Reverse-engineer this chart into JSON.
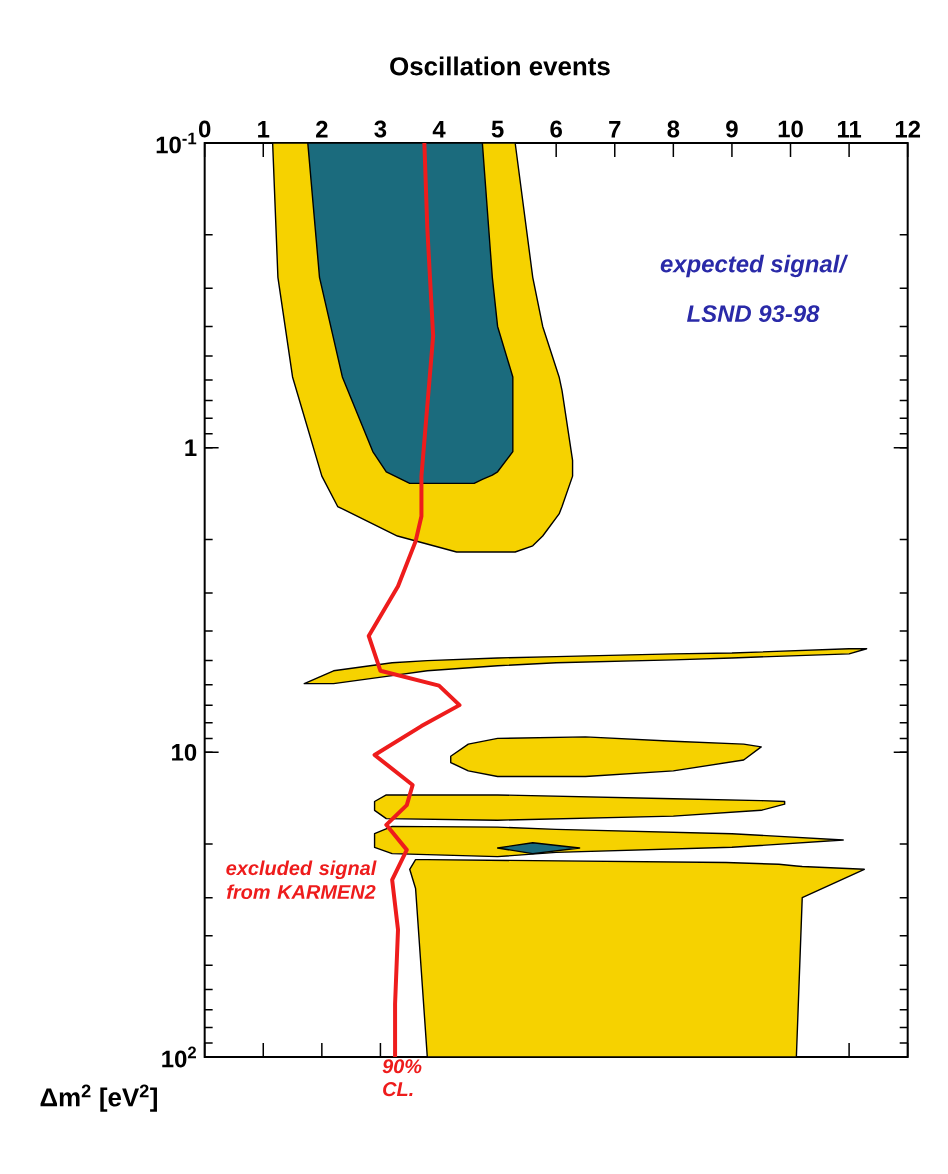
{
  "chart_data": {
    "type": "line",
    "log": "y",
    "xlabel": "Oscillation events",
    "ylabel": "Δm$^{2}$ [eV$^{2}$]",
    "xlim": [
      0,
      12
    ],
    "ylim": [
      100,
      0.1
    ],
    "xticks": [
      0,
      1,
      2,
      3,
      4,
      5,
      6,
      7,
      8,
      9,
      10,
      11,
      12
    ],
    "yticks": [
      {
        "value": 0.1,
        "label": "10$^{-1}$"
      },
      1,
      10,
      {
        "value": 100,
        "label": "10$^{2}$"
      }
    ],
    "series": [
      {
        "type": "area",
        "color": "#f6d200",
        "x": [
          1.16,
          1.25,
          1.5,
          2.0,
          2.27,
          3.29,
          4.3,
          5.3,
          5.6,
          5.77,
          6.05,
          6.1,
          6.28
        ],
        "values": [
          null,
          null,
          null,
          null,
          null,
          null,
          null,
          null,
          null,
          null,
          null,
          null,
          null
        ],
        "lower": [
          0.1,
          0.1,
          0.1,
          0.1,
          0.1,
          0.1,
          0.1,
          0.1,
          0.276,
          0.4,
          0.586,
          0.65,
          1.1
        ],
        "upper": [
          0.1,
          0.276,
          0.586,
          1.24,
          1.56,
          1.95,
          2.2,
          2.2,
          2.1,
          1.95,
          1.65,
          1.56,
          1.24
        ]
      },
      {
        "type": "area",
        "color": "#1b6b7d",
        "x": [
          1.76,
          1.96,
          2.35,
          2.87,
          3.1,
          3.5,
          4.6,
          4.74,
          4.91,
          5.0,
          5.26
        ],
        "values": [
          null,
          null,
          null,
          null,
          null,
          null,
          null,
          null,
          null,
          null,
          null
        ],
        "lower": [
          0.1,
          0.1,
          0.1,
          0.1,
          0.1,
          0.1,
          0.1,
          0.1,
          0.276,
          0.4,
          0.586
        ],
        "upper": [
          0.1,
          0.276,
          0.586,
          1.03,
          1.2,
          1.31,
          1.31,
          1.27,
          1.23,
          1.2,
          1.03
        ]
      },
      {
        "type": "area",
        "color": "#f6d200",
        "x": [
          1.7,
          2.2,
          3.2,
          3.8,
          5.0,
          6.0,
          8.0,
          9.0,
          11.0,
          11.3
        ],
        "values": [
          null,
          null,
          null,
          null,
          null,
          null,
          null,
          null,
          null,
          null
        ],
        "lower": [
          5.95,
          5.4,
          5.08,
          5.0,
          4.9,
          4.85,
          4.75,
          4.72,
          4.57,
          4.57
        ],
        "upper": [
          5.95,
          5.95,
          5.6,
          5.4,
          5.2,
          5.08,
          4.97,
          4.9,
          4.75,
          4.57
        ]
      },
      {
        "type": "area",
        "color": "#f6d200",
        "x": [
          4.2,
          4.5,
          5.0,
          6.5,
          8.0,
          9.2,
          9.5
        ],
        "values": [
          null,
          null,
          null,
          null,
          null,
          null,
          null
        ],
        "lower": [
          10.3,
          9.4,
          9.0,
          8.9,
          9.2,
          9.4,
          9.6
        ],
        "upper": [
          10.8,
          11.5,
          12.0,
          12.0,
          11.5,
          10.6,
          9.6
        ]
      },
      {
        "type": "area",
        "color": "#f6d200",
        "x": [
          2.9,
          3.1,
          5.0,
          8.0,
          9.5,
          9.9
        ],
        "values": [
          null,
          null,
          null,
          null,
          null,
          null
        ],
        "lower": [
          14.5,
          13.8,
          13.8,
          14.2,
          14.4,
          14.5
        ],
        "upper": [
          15.5,
          16.5,
          16.7,
          16.2,
          15.5,
          14.8
        ]
      },
      {
        "type": "area",
        "color": "#f6d200",
        "x": [
          2.9,
          3.2,
          5.0,
          6.0,
          9.0,
          10.9
        ],
        "values": [
          null,
          null,
          null,
          null,
          null,
          null
        ],
        "lower": [
          18.5,
          17.5,
          17.6,
          17.9,
          18.5,
          19.4
        ],
        "upper": [
          20.5,
          21.5,
          22.0,
          21.3,
          20.5,
          19.4
        ]
      },
      {
        "type": "area",
        "color": "#f6d200",
        "x": [
          3.5,
          3.6,
          3.8,
          8.9,
          9.8,
          10.1,
          10.2,
          11.26
        ],
        "values": [
          null,
          null,
          null,
          null,
          null,
          null,
          null,
          null
        ],
        "lower": [
          24.2,
          22.5,
          22.5,
          23.0,
          23.3,
          23.6,
          23.7,
          24.2
        ],
        "upper": [
          24.2,
          28.0,
          100,
          100,
          100,
          100,
          30.0,
          24.2
        ]
      },
      {
        "type": "area",
        "color": "#1b6b7d",
        "x": [
          5.0,
          5.6,
          6.4
        ],
        "values": [
          null,
          null,
          null
        ],
        "lower": [
          20.6,
          19.8,
          20.6
        ],
        "upper": [
          20.6,
          21.5,
          20.6
        ]
      },
      {
        "name": "excluded signal from KARMEN2",
        "color": "#ee1c1c",
        "x": [
          3.75,
          3.8,
          3.9,
          3.7,
          3.7,
          3.6,
          3.3,
          2.8,
          3.0,
          4.0,
          4.35,
          3.7,
          2.9,
          3.55,
          3.45,
          3.1,
          3.45,
          3.2,
          3.3,
          3.25,
          3.25
        ],
        "values": [
          0.1,
          0.19,
          0.43,
          1.24,
          1.68,
          2.03,
          2.85,
          4.15,
          5.4,
          6.04,
          7.0,
          8.2,
          10.2,
          12.8,
          14.9,
          17.3,
          20.9,
          26.2,
          38.2,
          67.0,
          100.0
        ]
      }
    ],
    "annotations": [
      "expected signal/",
      "LSND 93-98",
      {
        "text": "90% CL.",
        "x": 3.25,
        "y": 100
      }
    ]
  }
}
